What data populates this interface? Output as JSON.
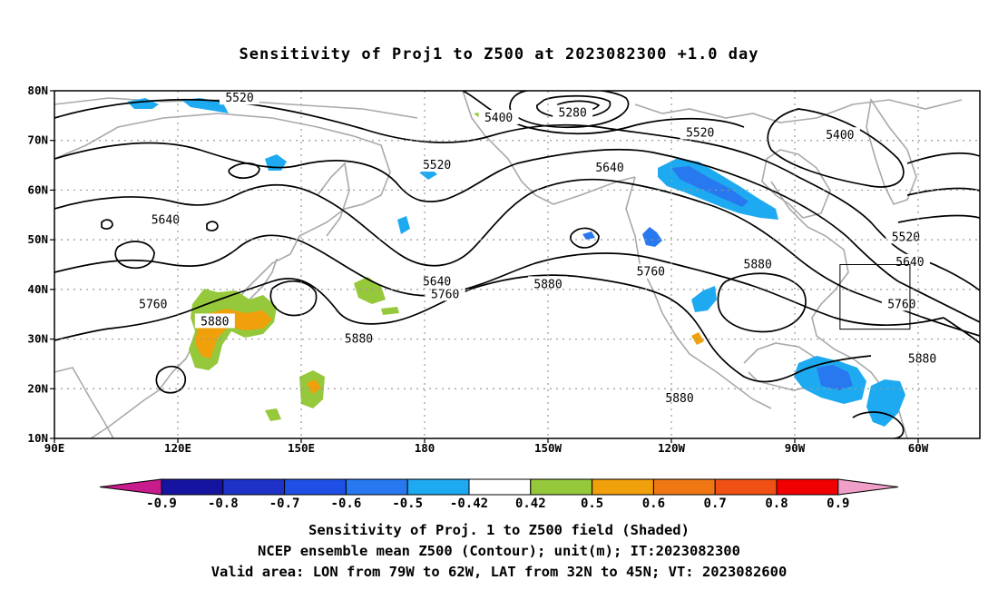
{
  "title": "Sensitivity of Proj1 to Z500 at 2023082300 +1.0 day",
  "map": {
    "lon_labels": [
      "90E",
      "120E",
      "150E",
      "180",
      "150W",
      "120W",
      "90W",
      "60W"
    ],
    "lat_labels": [
      "80N",
      "70N",
      "60N",
      "50N",
      "40N",
      "30N",
      "20N",
      "10N"
    ],
    "contour_labels": [
      {
        "text": "5520",
        "lon": 135,
        "lat": 78.5
      },
      {
        "text": "5400",
        "lon": -162,
        "lat": 74.5
      },
      {
        "text": "5280",
        "lon": -144,
        "lat": 75.5
      },
      {
        "text": "5520",
        "lon": -113,
        "lat": 71.5
      },
      {
        "text": "5400",
        "lon": -79,
        "lat": 71
      },
      {
        "text": "5520",
        "lon": -177,
        "lat": 65
      },
      {
        "text": "5640",
        "lon": -135,
        "lat": 64.5
      },
      {
        "text": "5640",
        "lon": 117,
        "lat": 54
      },
      {
        "text": "5640",
        "lon": -177,
        "lat": 41.5
      },
      {
        "text": "5760",
        "lon": -175,
        "lat": 39
      },
      {
        "text": "5880",
        "lon": -150,
        "lat": 41
      },
      {
        "text": "5760",
        "lon": -125,
        "lat": 43.5
      },
      {
        "text": "5880",
        "lon": -99,
        "lat": 45
      },
      {
        "text": "5520",
        "lon": -63,
        "lat": 50.5
      },
      {
        "text": "5640",
        "lon": -62,
        "lat": 45.5
      },
      {
        "text": "5760",
        "lon": -64,
        "lat": 37
      },
      {
        "text": "5760",
        "lon": 114,
        "lat": 37
      },
      {
        "text": "5880",
        "lon": 129,
        "lat": 33.5
      },
      {
        "text": "5880",
        "lon": 164,
        "lat": 30
      },
      {
        "text": "5880",
        "lon": -59,
        "lat": 26
      },
      {
        "text": "5880",
        "lon": -118,
        "lat": 18
      }
    ],
    "valid_box": {
      "lon1": -79,
      "lon2": -62,
      "lat1": 32,
      "lat2": 45
    }
  },
  "colorbar": {
    "labels": [
      "-0.9",
      "-0.8",
      "-0.7",
      "-0.6",
      "-0.5",
      "-0.42",
      "0.42",
      "0.5",
      "0.6",
      "0.7",
      "0.8",
      "0.9"
    ],
    "colors": {
      "left_tip": "#c81c8c",
      "bins": [
        "#1414a0",
        "#1e32c8",
        "#1e50e6",
        "#2878f0",
        "#1eaaf0",
        "#ffffff",
        "#96c83c",
        "#f0a00a",
        "#f07814",
        "#f05014",
        "#f00000"
      ],
      "right_tip": "#f0a0c8"
    }
  },
  "captions": [
    "Sensitivity of Proj. 1 to Z500 field (Shaded)",
    "NCEP ensemble mean Z500 (Contour); unit(m); IT:2023082300",
    "Valid area: LON from 79W to 62W, LAT from 32N to 45N; VT: 2023082600"
  ]
}
